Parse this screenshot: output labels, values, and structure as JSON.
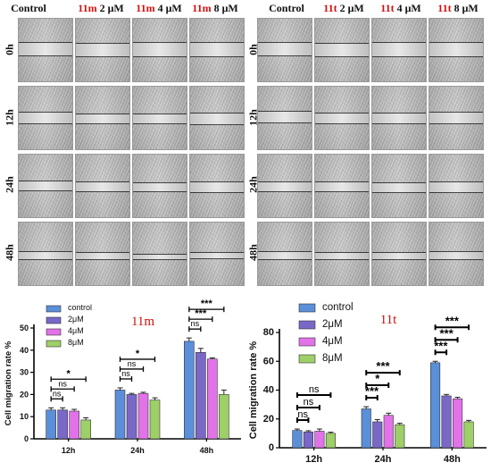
{
  "panels": [
    {
      "compound": "11m",
      "headers": [
        {
          "compound": "",
          "dose": "Control"
        },
        {
          "compound": "11m",
          "dose": "2 μM"
        },
        {
          "compound": "11m",
          "dose": "4 μM"
        },
        {
          "compound": "11m",
          "dose": "8 μM"
        }
      ],
      "rows": [
        "0h",
        "12h",
        "24h",
        "48h"
      ]
    },
    {
      "compound": "11t",
      "headers": [
        {
          "compound": "",
          "dose": "Control"
        },
        {
          "compound": "11t",
          "dose": "2 μM"
        },
        {
          "compound": "11t",
          "dose": "4 μM"
        },
        {
          "compound": "11t",
          "dose": "8 μM"
        }
      ],
      "rows": [
        "0h",
        "12h",
        "24h",
        "48h"
      ]
    }
  ],
  "colors": {
    "control": "#5b8fd9",
    "2uM": "#7a68c8",
    "4uM": "#e272e8",
    "8uM": "#9ecf68",
    "title": "#d01010"
  },
  "chart_data": [
    {
      "type": "bar",
      "title": "11m",
      "ylabel": "Cell migration rate %",
      "xlabel": "",
      "categories": [
        "12h",
        "24h",
        "48h"
      ],
      "ylim": [
        0,
        50
      ],
      "yticks": [
        "0",
        "10",
        "20",
        "30",
        "40",
        "50"
      ],
      "series": [
        {
          "name": "control",
          "values": [
            13.0,
            22.0,
            44.0
          ],
          "errors": [
            1.0,
            1.0,
            1.5
          ]
        },
        {
          "name": "2μM",
          "values": [
            13.0,
            20.0,
            39.0
          ],
          "errors": [
            1.0,
            0.5,
            1.8
          ]
        },
        {
          "name": "4μM",
          "values": [
            12.5,
            20.5,
            36.0
          ],
          "errors": [
            0.8,
            0.5,
            0.5
          ]
        },
        {
          "name": "8μM",
          "values": [
            8.5,
            17.5,
            20.0
          ],
          "errors": [
            1.0,
            1.0,
            2.0
          ]
        }
      ],
      "significance": [
        {
          "label": "ns",
          "time": "12h",
          "to_series": "2μM"
        },
        {
          "label": "ns",
          "time": "12h",
          "to_series": "4μM"
        },
        {
          "label": "*",
          "time": "12h",
          "to_series": "8μM"
        },
        {
          "label": "ns",
          "time": "24h",
          "to_series": "2μM"
        },
        {
          "label": "ns",
          "time": "24h",
          "to_series": "4μM"
        },
        {
          "label": "*",
          "time": "24h",
          "to_series": "8μM"
        },
        {
          "label": "ns",
          "time": "48h",
          "to_series": "2μM"
        },
        {
          "label": "***",
          "time": "48h",
          "to_series": "4μM"
        },
        {
          "label": "***",
          "time": "48h",
          "to_series": "8μM"
        }
      ],
      "legend": "top-left"
    },
    {
      "type": "bar",
      "title": "11t",
      "ylabel": "Cell migration rate %",
      "xlabel": "",
      "categories": [
        "12h",
        "24h",
        "48h"
      ],
      "ylim": [
        0,
        80
      ],
      "yticks": [
        "0",
        "20",
        "40",
        "60",
        "80"
      ],
      "series": [
        {
          "name": "control",
          "values": [
            12.0,
            27.0,
            59.0
          ],
          "errors": [
            1.0,
            1.5,
            1.0
          ]
        },
        {
          "name": "2μM",
          "values": [
            11.0,
            18.0,
            36.0
          ],
          "errors": [
            0.8,
            1.5,
            1.0
          ]
        },
        {
          "name": "4μM",
          "values": [
            11.5,
            22.5,
            34.0
          ],
          "errors": [
            1.5,
            1.5,
            1.0
          ]
        },
        {
          "name": "8μM",
          "values": [
            10.0,
            16.0,
            18.0
          ],
          "errors": [
            0.8,
            1.0,
            1.0
          ]
        }
      ],
      "significance": [
        {
          "label": "ns",
          "time": "12h",
          "to_series": "2μM"
        },
        {
          "label": "ns",
          "time": "12h",
          "to_series": "4μM"
        },
        {
          "label": "ns",
          "time": "12h",
          "to_series": "8μM"
        },
        {
          "label": "***",
          "time": "24h",
          "to_series": "2μM"
        },
        {
          "label": "*",
          "time": "24h",
          "to_series": "4μM"
        },
        {
          "label": "***",
          "time": "24h",
          "to_series": "8μM"
        },
        {
          "label": "***",
          "time": "48h",
          "to_series": "2μM"
        },
        {
          "label": "***",
          "time": "48h",
          "to_series": "4μM"
        },
        {
          "label": "***",
          "time": "48h",
          "to_series": "8μM"
        }
      ],
      "legend": "top-left"
    }
  ]
}
